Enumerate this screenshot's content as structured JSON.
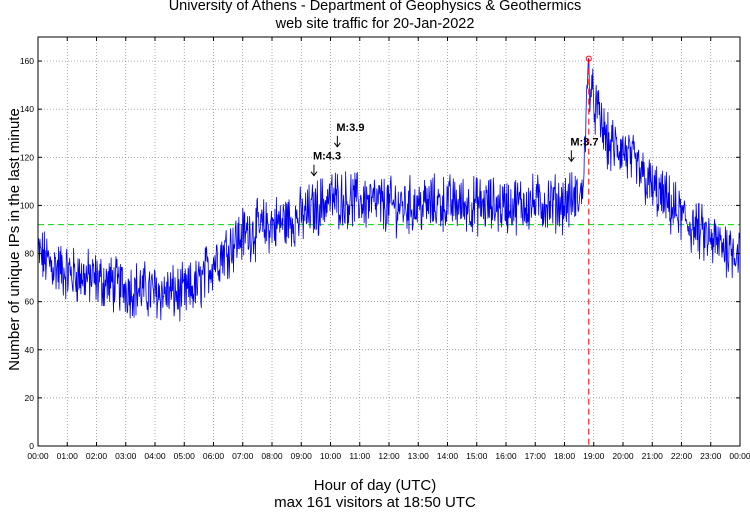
{
  "chart_data": {
    "type": "line",
    "title": "University of Athens - Department of Geophysics & Geothermics",
    "subtitle": "web site traffic for 20-Jan-2022",
    "xlabel": "Hour of day (UTC)",
    "ylabel": "Number of unique IPs in the last minute",
    "footer": "max 161 visitors at 18:50 UTC",
    "xlim": [
      0,
      24
    ],
    "ylim": [
      0,
      170
    ],
    "x_ticks": [
      "00:00",
      "01:00",
      "02:00",
      "03:00",
      "04:00",
      "05:00",
      "06:00",
      "07:00",
      "08:00",
      "09:00",
      "10:00",
      "11:00",
      "12:00",
      "13:00",
      "14:00",
      "15:00",
      "16:00",
      "17:00",
      "18:00",
      "19:00",
      "20:00",
      "21:00",
      "22:00",
      "23:00",
      "00:00"
    ],
    "y_ticks": [
      0,
      20,
      40,
      60,
      80,
      100,
      120,
      140,
      160
    ],
    "grid": true,
    "mean_line": 92,
    "peak": {
      "hour": 18.83,
      "value": 161
    },
    "series": [
      {
        "name": "unique IPs",
        "color": "#0000ee",
        "profile_hours": [
          0,
          0.5,
          1,
          2,
          3,
          4,
          5,
          5.5,
          6,
          7,
          8,
          9,
          10,
          11,
          12,
          13,
          14,
          15,
          16,
          17,
          18,
          18.6,
          18.8,
          19,
          19.5,
          20,
          21,
          22,
          23,
          24
        ],
        "profile_values": [
          80,
          75,
          72,
          69,
          66,
          64,
          63,
          67,
          77,
          88,
          92,
          95,
          103,
          102,
          100,
          100,
          101,
          100,
          100,
          101,
          101,
          104,
          150,
          143,
          125,
          123,
          107,
          95,
          85,
          81
        ]
      }
    ],
    "annotations": [
      {
        "text": "M:4.3",
        "hour": 9.4,
        "value": 119,
        "arrow": true
      },
      {
        "text": "M:3.9",
        "hour": 10.2,
        "value": 131,
        "arrow": true
      },
      {
        "text": "M:3.7",
        "hour": 18.2,
        "value": 125,
        "arrow": true
      }
    ],
    "colors": {
      "series": "#0000ee",
      "mean": "#00dd00",
      "peak": "#ff0000",
      "grid": "#888888"
    }
  }
}
